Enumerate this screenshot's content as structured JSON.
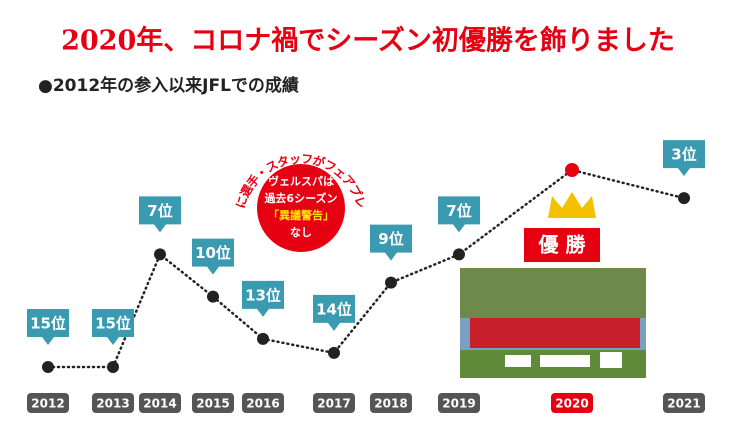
{
  "chart_data": {
    "type": "line",
    "title": "2020年、コロナ禍でシーズン初優勝を飾りました",
    "subtitle": "●2012年の参入以来JFLでの成績",
    "categories": [
      "2012",
      "2013",
      "2014",
      "2015",
      "2016",
      "2017",
      "2018",
      "2019",
      "2020",
      "2021"
    ],
    "values": [
      15,
      15,
      7,
      10,
      13,
      14,
      9,
      7,
      1,
      3
    ],
    "value_labels": [
      "15位",
      "15位",
      "7位",
      "10位",
      "13位",
      "14位",
      "9位",
      "7位",
      "優 勝",
      "3位"
    ],
    "ylim": [
      15,
      1
    ],
    "color": "#222222",
    "highlight_color": "#e60012",
    "label_color": "#3a9bb0",
    "annotation": {
      "arc": "常に選手・スタッフがフェアプレー",
      "lines": [
        "ヴェルスパは",
        "過去6シーズン",
        "「異議警告」",
        "なし"
      ]
    }
  }
}
